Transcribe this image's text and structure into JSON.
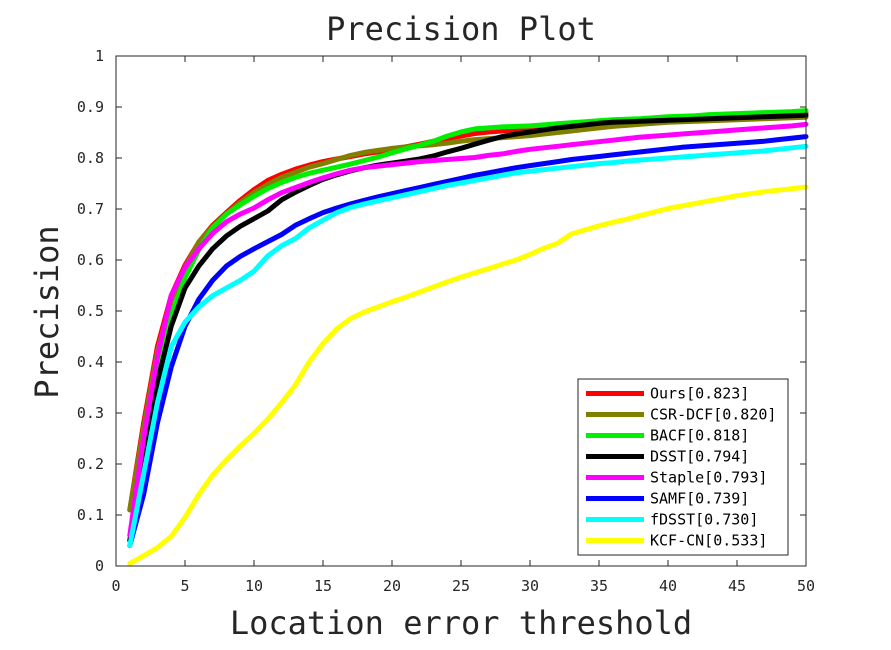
{
  "chart_data": {
    "type": "line",
    "title": "Precision Plot",
    "xlabel": "Location error threshold",
    "ylabel": "Precision",
    "xlim": [
      0,
      50
    ],
    "ylim": [
      0,
      1
    ],
    "x_ticks": [
      "0",
      "5",
      "10",
      "15",
      "20",
      "25",
      "30",
      "35",
      "40",
      "45",
      "50"
    ],
    "y_ticks": [
      "0",
      "0.1",
      "0.2",
      "0.3",
      "0.4",
      "0.5",
      "0.6",
      "0.7",
      "0.8",
      "0.9",
      "1"
    ],
    "grid": false,
    "legend_position": "bottom-right",
    "x": [
      1,
      2,
      3,
      4,
      5,
      6,
      7,
      8,
      9,
      10,
      11,
      12,
      13,
      14,
      15,
      16,
      17,
      18,
      19,
      20,
      21,
      22,
      23,
      24,
      25,
      26,
      27,
      28,
      29,
      30,
      31,
      32,
      33,
      34,
      35,
      36,
      37,
      38,
      39,
      40,
      41,
      42,
      43,
      44,
      45,
      46,
      47,
      48,
      49,
      50
    ],
    "series": [
      {
        "name": "Ours[0.823]",
        "color": "#ff0000",
        "values": [
          0.11,
          0.28,
          0.43,
          0.53,
          0.59,
          0.635,
          0.668,
          0.693,
          0.717,
          0.738,
          0.756,
          0.768,
          0.778,
          0.786,
          0.793,
          0.798,
          0.803,
          0.808,
          0.812,
          0.817,
          0.822,
          0.827,
          0.833,
          0.838,
          0.843,
          0.848,
          0.851,
          0.853,
          0.855,
          0.856,
          0.858,
          0.86,
          0.863,
          0.865,
          0.867,
          0.869,
          0.871,
          0.873,
          0.874,
          0.875,
          0.876,
          0.877,
          0.878,
          0.879,
          0.88,
          0.881,
          0.882,
          0.884,
          0.886,
          0.888
        ]
      },
      {
        "name": "CSR-DCF[0.820]",
        "color": "#808000",
        "values": [
          0.11,
          0.27,
          0.42,
          0.52,
          0.585,
          0.635,
          0.665,
          0.69,
          0.713,
          0.732,
          0.748,
          0.762,
          0.772,
          0.782,
          0.789,
          0.797,
          0.805,
          0.811,
          0.815,
          0.819,
          0.822,
          0.824,
          0.826,
          0.829,
          0.833,
          0.836,
          0.838,
          0.84,
          0.842,
          0.844,
          0.847,
          0.85,
          0.853,
          0.856,
          0.859,
          0.862,
          0.864,
          0.866,
          0.868,
          0.87,
          0.871,
          0.872,
          0.873,
          0.874,
          0.875,
          0.876,
          0.877,
          0.878,
          0.879,
          0.88
        ]
      },
      {
        "name": "BACF[0.818]",
        "color": "#00ee00",
        "values": [
          0.05,
          0.22,
          0.38,
          0.49,
          0.565,
          0.62,
          0.663,
          0.69,
          0.708,
          0.725,
          0.74,
          0.752,
          0.762,
          0.77,
          0.776,
          0.782,
          0.788,
          0.795,
          0.802,
          0.81,
          0.818,
          0.825,
          0.833,
          0.843,
          0.851,
          0.857,
          0.859,
          0.861,
          0.862,
          0.863,
          0.865,
          0.867,
          0.869,
          0.871,
          0.873,
          0.875,
          0.876,
          0.877,
          0.879,
          0.881,
          0.882,
          0.883,
          0.885,
          0.886,
          0.887,
          0.888,
          0.889,
          0.89,
          0.891,
          0.893
        ]
      },
      {
        "name": "DSST[0.794]",
        "color": "#000000",
        "values": [
          0.05,
          0.2,
          0.36,
          0.47,
          0.545,
          0.588,
          0.622,
          0.647,
          0.666,
          0.681,
          0.696,
          0.718,
          0.733,
          0.746,
          0.758,
          0.767,
          0.775,
          0.781,
          0.786,
          0.79,
          0.794,
          0.798,
          0.804,
          0.812,
          0.819,
          0.827,
          0.835,
          0.842,
          0.847,
          0.851,
          0.855,
          0.859,
          0.862,
          0.865,
          0.868,
          0.87,
          0.871,
          0.872,
          0.873,
          0.874,
          0.875,
          0.876,
          0.877,
          0.878,
          0.879,
          0.88,
          0.881,
          0.882,
          0.883,
          0.884
        ]
      },
      {
        "name": "Staple[0.793]",
        "color": "#ff00ff",
        "values": [
          0.06,
          0.25,
          0.41,
          0.53,
          0.585,
          0.622,
          0.652,
          0.675,
          0.69,
          0.702,
          0.718,
          0.732,
          0.742,
          0.752,
          0.761,
          0.769,
          0.776,
          0.781,
          0.784,
          0.787,
          0.79,
          0.793,
          0.795,
          0.797,
          0.799,
          0.801,
          0.805,
          0.808,
          0.813,
          0.817,
          0.82,
          0.823,
          0.826,
          0.829,
          0.832,
          0.835,
          0.838,
          0.841,
          0.843,
          0.845,
          0.847,
          0.849,
          0.851,
          0.853,
          0.855,
          0.857,
          0.859,
          0.861,
          0.863,
          0.866
        ]
      },
      {
        "name": "SAMF[0.739]",
        "color": "#0000ff",
        "values": [
          0.04,
          0.14,
          0.28,
          0.39,
          0.47,
          0.523,
          0.56,
          0.588,
          0.607,
          0.622,
          0.636,
          0.65,
          0.668,
          0.681,
          0.693,
          0.702,
          0.71,
          0.717,
          0.724,
          0.73,
          0.736,
          0.742,
          0.748,
          0.754,
          0.76,
          0.766,
          0.771,
          0.776,
          0.781,
          0.785,
          0.789,
          0.793,
          0.797,
          0.8,
          0.803,
          0.806,
          0.809,
          0.812,
          0.815,
          0.818,
          0.821,
          0.823,
          0.825,
          0.827,
          0.829,
          0.831,
          0.833,
          0.836,
          0.839,
          0.842
        ]
      },
      {
        "name": "fDSST[0.730]",
        "color": "#00ffff",
        "values": [
          0.04,
          0.18,
          0.32,
          0.43,
          0.478,
          0.508,
          0.53,
          0.545,
          0.56,
          0.578,
          0.608,
          0.628,
          0.642,
          0.663,
          0.678,
          0.693,
          0.703,
          0.71,
          0.716,
          0.722,
          0.728,
          0.734,
          0.74,
          0.746,
          0.751,
          0.756,
          0.761,
          0.766,
          0.771,
          0.774,
          0.777,
          0.78,
          0.783,
          0.786,
          0.789,
          0.791,
          0.794,
          0.796,
          0.798,
          0.8,
          0.802,
          0.804,
          0.806,
          0.808,
          0.81,
          0.812,
          0.814,
          0.817,
          0.82,
          0.823
        ]
      },
      {
        "name": "KCF-CN[0.533]",
        "color": "#ffff00",
        "values": [
          0.005,
          0.02,
          0.036,
          0.058,
          0.095,
          0.14,
          0.178,
          0.208,
          0.235,
          0.26,
          0.288,
          0.32,
          0.355,
          0.4,
          0.436,
          0.465,
          0.485,
          0.498,
          0.508,
          0.518,
          0.527,
          0.537,
          0.547,
          0.557,
          0.566,
          0.575,
          0.583,
          0.592,
          0.6,
          0.611,
          0.623,
          0.633,
          0.651,
          0.659,
          0.667,
          0.674,
          0.68,
          0.687,
          0.694,
          0.701,
          0.706,
          0.711,
          0.716,
          0.721,
          0.726,
          0.73,
          0.734,
          0.737,
          0.74,
          0.743
        ]
      }
    ]
  }
}
